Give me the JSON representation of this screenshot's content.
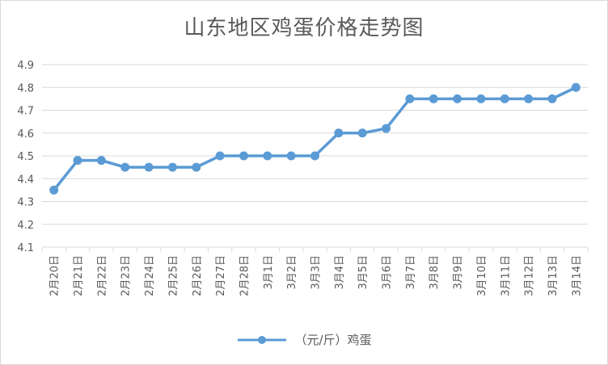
{
  "chart_data": {
    "type": "line",
    "title": "山东地区鸡蛋价格走势图",
    "xlabel": "",
    "ylabel": "",
    "ylim": [
      4.1,
      4.9
    ],
    "yticks": [
      "4.9",
      "4.8",
      "4.7",
      "4.6",
      "4.5",
      "4.4",
      "4.3",
      "4.2",
      "4.1"
    ],
    "categories": [
      "2月20日",
      "2月21日",
      "2月22日",
      "2月23日",
      "2月24日",
      "2月25日",
      "2月26日",
      "2月27日",
      "2月28日",
      "3月1日",
      "3月2日",
      "3月3日",
      "3月4日",
      "3月5日",
      "3月6日",
      "3月7日",
      "3月8日",
      "3月9日",
      "3月10日",
      "3月11日",
      "3月12日",
      "3月13日",
      "3月14日"
    ],
    "series": [
      {
        "name": "（元/斤）鸡蛋",
        "color": "#5b9bd5",
        "values": [
          4.35,
          4.48,
          4.48,
          4.45,
          4.45,
          4.45,
          4.45,
          4.5,
          4.5,
          4.5,
          4.5,
          4.5,
          4.6,
          4.6,
          4.62,
          4.75,
          4.75,
          4.75,
          4.75,
          4.75,
          4.75,
          4.75,
          4.8
        ]
      }
    ],
    "grid": true,
    "legend_position": "bottom"
  }
}
